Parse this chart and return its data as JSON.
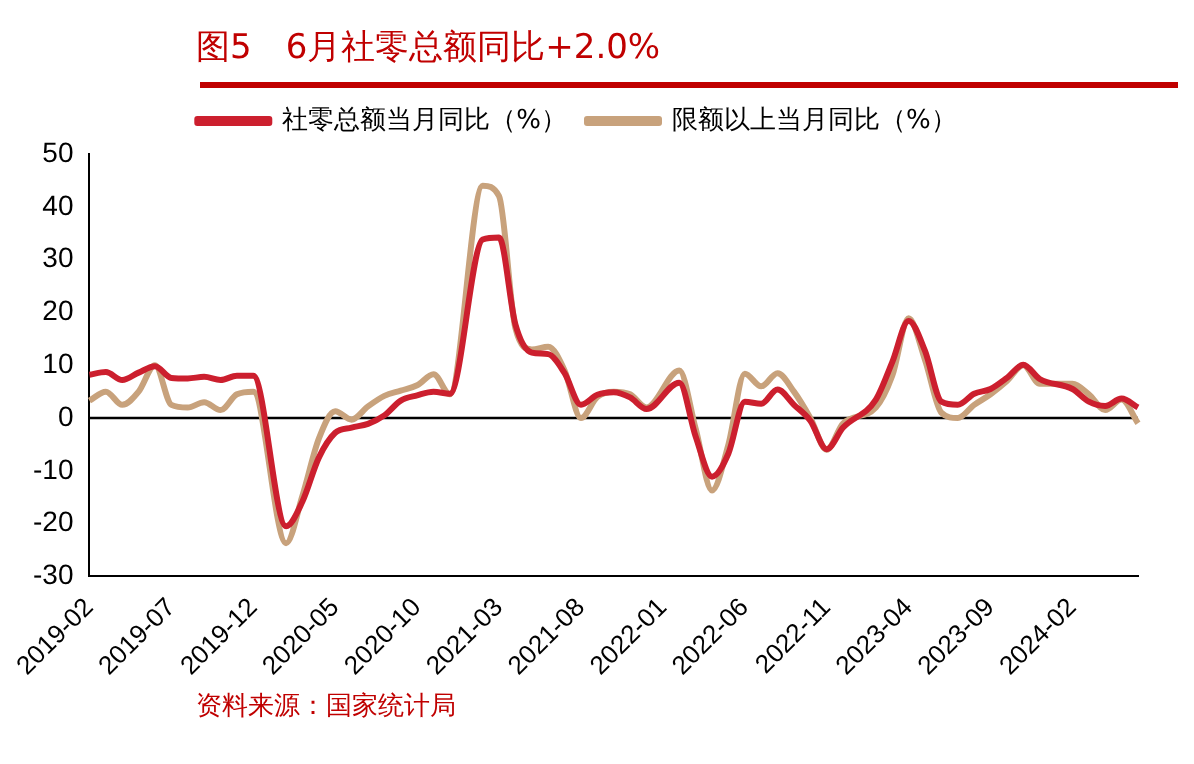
{
  "chart_data": {
    "type": "line",
    "title": "图5　6月社零总额同比+2.0%",
    "annotations": [
      "资料来源：国家统计局"
    ],
    "categories": [
      "2019-02",
      null,
      null,
      null,
      null,
      "2019-07",
      null,
      null,
      null,
      null,
      "2019-12",
      null,
      null,
      null,
      null,
      "2020-05",
      null,
      null,
      null,
      null,
      "2020-10",
      null,
      null,
      null,
      null,
      "2021-03",
      null,
      null,
      null,
      null,
      "2021-08",
      null,
      null,
      null,
      null,
      "2022-01",
      null,
      null,
      null,
      null,
      "2022-06",
      null,
      null,
      null,
      null,
      "2022-11",
      null,
      null,
      null,
      null,
      "2023-04",
      null,
      null,
      null,
      null,
      "2023-09",
      null,
      null,
      null,
      null,
      "2024-02",
      null,
      null,
      null,
      null
    ],
    "series": [
      {
        "name": "社零总额当月同比（%）",
        "color": "#cc1f2e",
        "values": [
          8.2,
          8.7,
          7.2,
          8.6,
          9.8,
          7.6,
          7.5,
          7.8,
          7.2,
          8.0,
          8.0,
          null,
          -20.5,
          -15.8,
          -7.5,
          -2.8,
          -1.8,
          -1.1,
          0.5,
          3.3,
          4.3,
          5.0,
          4.6,
          null,
          33.8,
          34.2,
          17.7,
          12.4,
          12.1,
          8.5,
          2.5,
          4.4,
          4.9,
          3.9,
          1.7,
          null,
          6.7,
          -3.5,
          -11.1,
          -6.7,
          3.1,
          2.7,
          5.4,
          2.5,
          -0.5,
          -5.9,
          -1.8,
          null,
          3.5,
          10.6,
          18.4,
          12.7,
          3.1,
          2.5,
          4.6,
          5.5,
          7.6,
          10.1,
          7.4,
          null,
          5.5,
          3.1,
          2.3,
          3.7,
          2.0
        ]
      },
      {
        "name": "限额以上当月同比（%）",
        "color": "#c8a27c",
        "values": [
          3.3,
          5,
          2.5,
          5,
          10,
          2.5,
          2,
          3,
          1.5,
          4.5,
          5,
          null,
          -23.7,
          -14.7,
          -3.9,
          1.3,
          -0.3,
          2.2,
          4.2,
          5.2,
          6.2,
          8.3,
          4.5,
          null,
          44,
          42,
          17,
          13,
          13.5,
          9,
          0,
          4,
          5,
          4.5,
          2,
          null,
          9,
          -2,
          -13.7,
          -5,
          8.4,
          6,
          8.5,
          5,
          0,
          -6,
          -1,
          null,
          2,
          8,
          18.9,
          11,
          1,
          0,
          2.5,
          4.5,
          7,
          10,
          6.5,
          null,
          6.5,
          4.5,
          1.5,
          3.5,
          -1
        ]
      }
    ],
    "ylim": [
      -30,
      50
    ],
    "yticks": [
      -30,
      -20,
      -10,
      0,
      10,
      20,
      30,
      40,
      50
    ],
    "grid": false,
    "legend": "top",
    "marker": "none",
    "line_style": "solid",
    "ref_lines": [
      {
        "axis": "y",
        "value": 0,
        "color": "#000000"
      }
    ]
  }
}
